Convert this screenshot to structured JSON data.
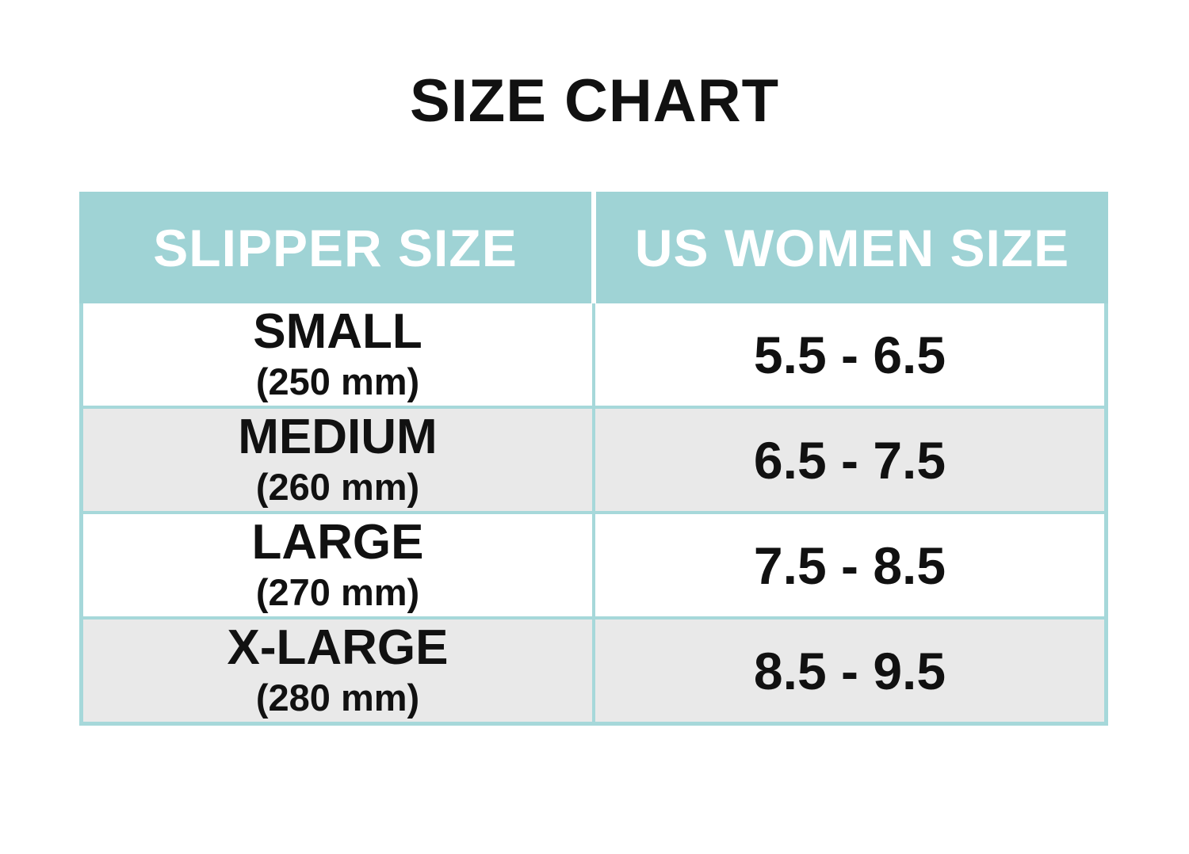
{
  "title": "SIZE CHART",
  "colors": {
    "header_bg": "#9fd3d5",
    "header_text": "#ffffff",
    "border": "#a6d8da",
    "row_bg": "#ffffff",
    "row_alt_bg": "#e9e9e9",
    "text": "#111111"
  },
  "table": {
    "columns": [
      "SLIPPER SIZE",
      "US WOMEN SIZE"
    ],
    "rows": [
      {
        "size": "SMALL",
        "mm": "(250 mm)",
        "us": "5.5 - 6.5"
      },
      {
        "size": "MEDIUM",
        "mm": "(260 mm)",
        "us": "6.5 - 7.5"
      },
      {
        "size": "LARGE",
        "mm": "(270 mm)",
        "us": "7.5 - 8.5"
      },
      {
        "size": "X-LARGE",
        "mm": "(280 mm)",
        "us": "8.5 - 9.5"
      }
    ]
  },
  "chart_data": {
    "type": "table",
    "title": "SIZE CHART",
    "columns": [
      "SLIPPER SIZE",
      "US WOMEN SIZE"
    ],
    "rows": [
      [
        "SMALL (250 mm)",
        "5.5 - 6.5"
      ],
      [
        "MEDIUM (260 mm)",
        "6.5 - 7.5"
      ],
      [
        "LARGE (270 mm)",
        "7.5 - 8.5"
      ],
      [
        "X-LARGE (280 mm)",
        "8.5 - 9.5"
      ]
    ],
    "layout": {
      "header_style": "teal background, white bold text",
      "row_striping": "white / light gray alternating",
      "grid": "teal lines"
    }
  }
}
